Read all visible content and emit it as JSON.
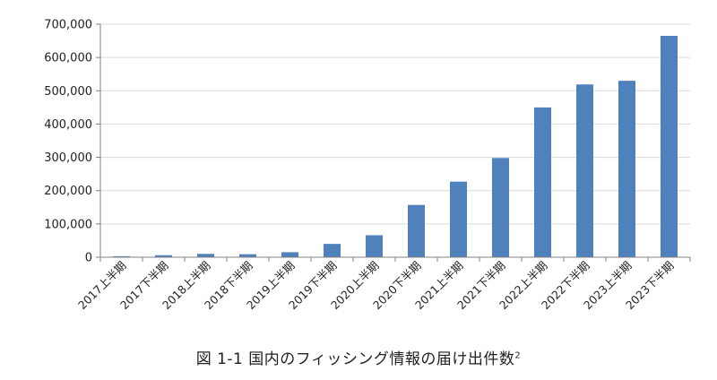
{
  "caption": {
    "text": "図 1-1 国内のフィッシング情報の届け出件数",
    "footnote": "2"
  },
  "colors": {
    "bar": "#4f81bd",
    "grid": "#d9d9d9",
    "axis": "#808080"
  },
  "chart_data": {
    "type": "bar",
    "title": "",
    "xlabel": "",
    "ylabel": "",
    "ylim": [
      0,
      700000
    ],
    "yticks": [
      0,
      100000,
      200000,
      300000,
      400000,
      500000,
      600000,
      700000
    ],
    "ytick_labels": [
      "0",
      "100,000",
      "200,000",
      "300,000",
      "400,000",
      "500,000",
      "600,000",
      "700,000"
    ],
    "grid": true,
    "legend": "none",
    "categories": [
      "2017上半期",
      "2017下半期",
      "2018上半期",
      "2018下半期",
      "2019上半期",
      "2019下半期",
      "2020上半期",
      "2020下半期",
      "2021上半期",
      "2021下半期",
      "2022上半期",
      "2022下半期",
      "2023上半期",
      "2023下半期"
    ],
    "values": [
      3000,
      6000,
      10000,
      9000,
      15000,
      40000,
      66000,
      157000,
      227000,
      298000,
      450000,
      519000,
      530000,
      665000
    ]
  }
}
